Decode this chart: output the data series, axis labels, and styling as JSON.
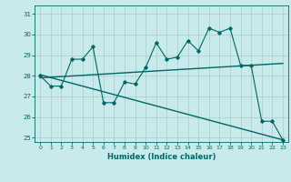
{
  "xlabel": "Humidex (Indice chaleur)",
  "ylabel": "",
  "bg_color": "#c8eaea",
  "grid_color": "#b0d0d0",
  "line_color": "#006666",
  "xlim": [
    -0.5,
    23.5
  ],
  "ylim": [
    24.8,
    31.4
  ],
  "yticks": [
    25,
    26,
    27,
    28,
    29,
    30,
    31
  ],
  "xticks": [
    0,
    1,
    2,
    3,
    4,
    5,
    6,
    7,
    8,
    9,
    10,
    11,
    12,
    13,
    14,
    15,
    16,
    17,
    18,
    19,
    20,
    21,
    22,
    23
  ],
  "line1": [
    28.0,
    27.5,
    27.5,
    28.8,
    28.8,
    29.4,
    26.7,
    26.7,
    27.7,
    27.6,
    28.4,
    29.6,
    28.8,
    28.9,
    29.7,
    29.2,
    30.3,
    30.1,
    30.3,
    28.5,
    28.5,
    25.8,
    25.8,
    24.9
  ],
  "trend1_x": [
    0,
    23
  ],
  "trend1_y": [
    27.9,
    28.6
  ],
  "trend2_x": [
    0,
    23
  ],
  "trend2_y": [
    28.05,
    24.9
  ]
}
